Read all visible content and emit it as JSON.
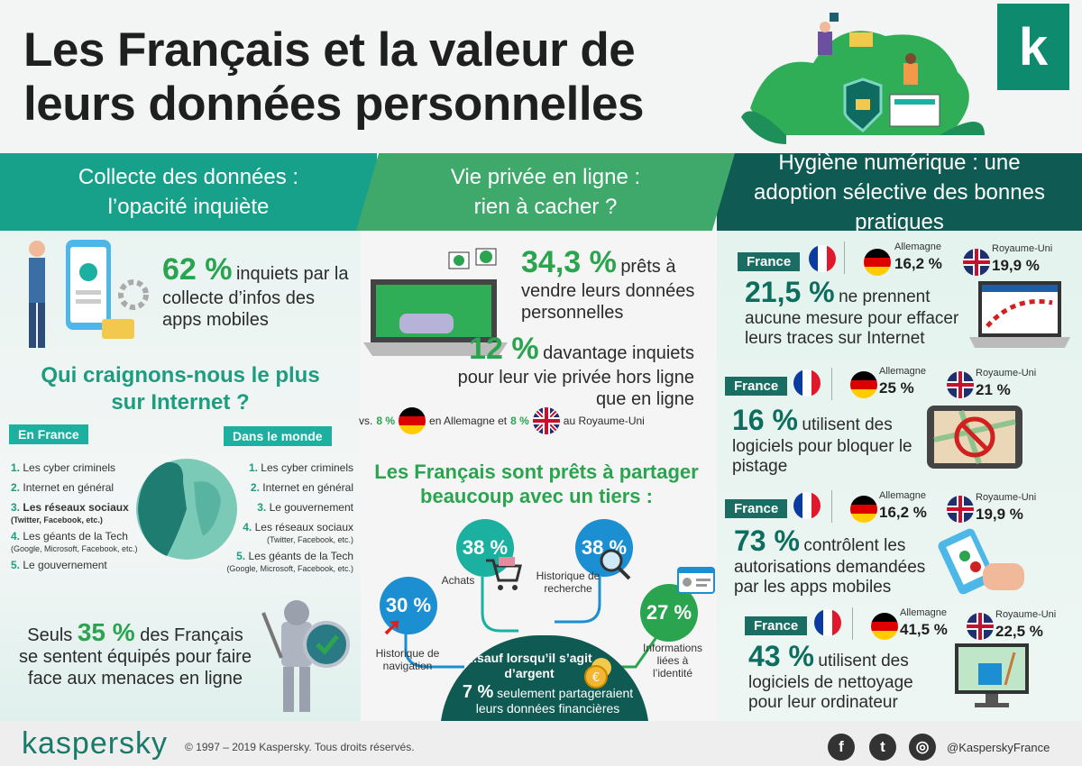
{
  "title": "Les Français et la valeur de leurs données personnelles",
  "brand": {
    "logo_letter": "k",
    "wordmark": "kaspersky",
    "copyright": "© 1997 – 2019 Kaspersky. Tous droits réservés.",
    "handle": "@KasperskyFrance"
  },
  "colors": {
    "teal": "#17a08a",
    "green": "#3ea96a",
    "dark": "#0f5a52",
    "accent": "#2aa44f"
  },
  "sections": {
    "s1": "Collecte des données : l’opacité inquiète",
    "s2": "Vie privée en ligne : rien à cacher ?",
    "s3": "Hygiène numérique : une adoption sélective des bonnes pratiques"
  },
  "col1": {
    "stat1_value": "62 %",
    "stat1_text": "inquiets par la collecte d’infos des apps mobiles",
    "question": "Qui craignons-nous le plus sur Internet ?",
    "france_label": "En France",
    "world_label": "Dans le monde",
    "france_list": [
      {
        "n": "1.",
        "t": "Les cyber criminels",
        "sub": ""
      },
      {
        "n": "2.",
        "t": "Internet en général",
        "sub": ""
      },
      {
        "n": "3.",
        "t": "Les réseaux sociaux",
        "sub": "(Twitter, Facebook, etc.)"
      },
      {
        "n": "4.",
        "t": "Les géants de la Tech",
        "sub": "(Google, Microsoft, Facebook, etc.)"
      },
      {
        "n": "5.",
        "t": "Le gouvernement",
        "sub": ""
      }
    ],
    "world_list": [
      {
        "n": "1.",
        "t": "Les cyber criminels",
        "sub": ""
      },
      {
        "n": "2.",
        "t": "Internet en général",
        "sub": ""
      },
      {
        "n": "3.",
        "t": "Le gouvernement",
        "sub": ""
      },
      {
        "n": "4.",
        "t": "Les réseaux sociaux",
        "sub": "(Twitter, Facebook, etc.)"
      },
      {
        "n": "5.",
        "t": "Les géants de la Tech",
        "sub": "(Google, Microsoft, Facebook, etc.)"
      }
    ],
    "stat2_pre": "Seuls",
    "stat2_value": "35 %",
    "stat2_text": "des Français se sentent équipés pour faire face aux menaces en ligne"
  },
  "col2": {
    "stat1_value": "34,3 %",
    "stat1_text": "prêts à vendre leurs données personnelles",
    "stat2_value": "12 %",
    "stat2_text": "davantage inquiets pour leur vie privée hors ligne que en ligne",
    "vs_pre": "vs.",
    "vs_de": "8 %",
    "vs_mid": "en Allemagne et",
    "vs_uk": "8 %",
    "vs_post": "au Royaume-Uni",
    "share_title": "Les Français sont prêts à partager beaucoup avec un tiers :",
    "bubbles": [
      {
        "value": "30 %",
        "label": "Historique de navigation"
      },
      {
        "value": "38 %",
        "label": "Achats"
      },
      {
        "value": "38 %",
        "label": "Historique de recherche"
      },
      {
        "value": "27 %",
        "label": "Informations liées à l’identité"
      }
    ],
    "money_title": "...sauf lorsqu’il s’agit d’argent",
    "money_value": "7 %",
    "money_text": "seulement partageraient leurs données financières"
  },
  "col3": {
    "label_fr": "France",
    "label_de": "Allemagne",
    "label_uk": "Royaume-Uni",
    "rows": [
      {
        "fr_value": "21,5 %",
        "fr_text": "ne prennent aucune mesure pour effacer leurs traces sur Internet",
        "de": "16,2 %",
        "uk": "19,9 %"
      },
      {
        "fr_value": "16 %",
        "fr_text": "utilisent des logiciels pour bloquer le pistage",
        "de": "25 %",
        "uk": "21 %"
      },
      {
        "fr_value": "73 %",
        "fr_text": "contrôlent les autorisations demandées par les apps mobiles",
        "de": "16,2 %",
        "uk": "19,9 %"
      },
      {
        "fr_value": "43 %",
        "fr_text": "utilisent des logiciels de nettoyage pour leur ordinateur",
        "de": "41,5 %",
        "uk": "22,5 %"
      }
    ]
  },
  "social": {
    "facebook": "f",
    "twitter": "t",
    "instagram": "◎"
  }
}
